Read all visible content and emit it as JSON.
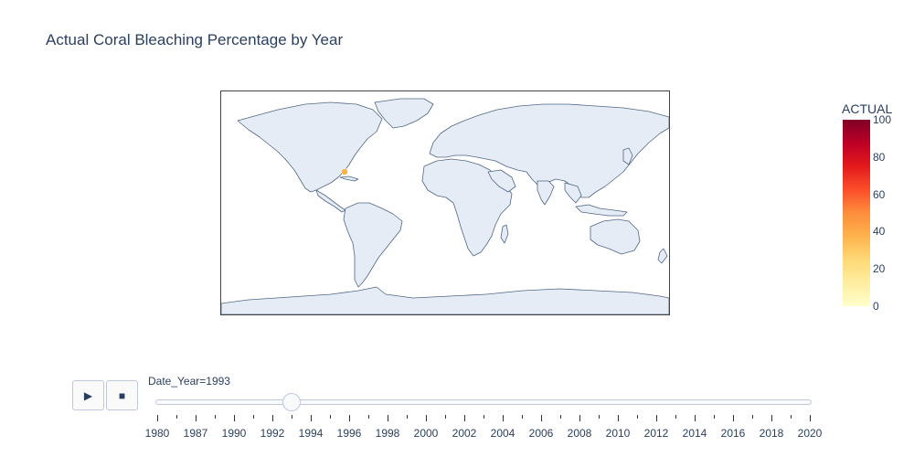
{
  "chart_data": {
    "type": "map",
    "title": "Actual Coral Bleaching Percentage by Year",
    "projection": "equirectangular",
    "land_color": "#e5ecf6",
    "coast_color": "#506784",
    "points": [
      {
        "lon": -80.8,
        "lat": 25.1,
        "value": 40
      }
    ],
    "colorbar": {
      "title": "ACTUAL",
      "range": [
        0,
        100
      ],
      "ticks": [
        "0",
        "20",
        "40",
        "60",
        "80",
        "100"
      ],
      "colorscale": [
        "#ffffcc",
        "#ffeda0",
        "#fed976",
        "#feb24c",
        "#fd8d3c",
        "#fc4e2a",
        "#e31a1c",
        "#bd0026",
        "#800026"
      ]
    }
  },
  "slider": {
    "label": "Date_Year=1993",
    "current": 1993,
    "min": 1980,
    "max": 2020,
    "tick_labels": [
      "1980",
      "1987",
      "1990",
      "1992",
      "1994",
      "1996",
      "1998",
      "2000",
      "2002",
      "2004",
      "2006",
      "2008",
      "2010",
      "2012",
      "2014",
      "2016",
      "2018",
      "2020"
    ]
  },
  "controls": {
    "play_icon": "play-icon",
    "stop_icon": "stop-icon",
    "play_symbol": "▶",
    "stop_symbol": "■"
  }
}
